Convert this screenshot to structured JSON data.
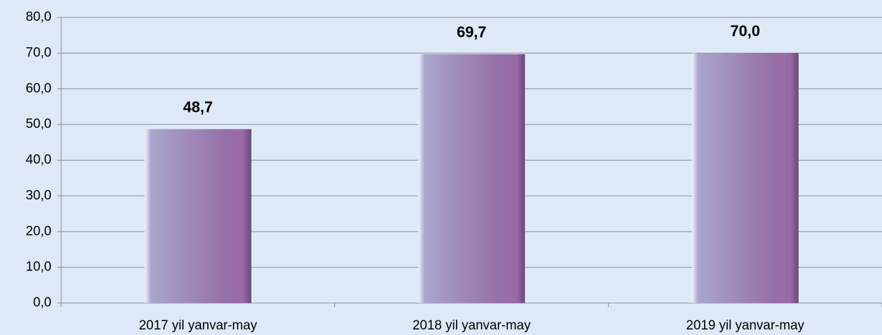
{
  "chart_data": {
    "type": "bar",
    "categories": [
      "2017 yil yanvar-may",
      "2018 yil yanvar-may",
      "2019 yil yanvar-may"
    ],
    "values": [
      48.7,
      69.7,
      70.0
    ],
    "value_labels": [
      "48,7",
      "69,7",
      "70,0"
    ],
    "color": "#9a78b0",
    "ylim": [
      0,
      80
    ],
    "yticks": [
      {
        "value": 0,
        "label": "0,0"
      },
      {
        "value": 10,
        "label": "10,0"
      },
      {
        "value": 20,
        "label": "20,0"
      },
      {
        "value": 30,
        "label": "30,0"
      },
      {
        "value": 40,
        "label": "40,0"
      },
      {
        "value": 50,
        "label": "50,0"
      },
      {
        "value": 60,
        "label": "60,0"
      },
      {
        "value": 70,
        "label": "70,0"
      },
      {
        "value": 80,
        "label": "80,0"
      }
    ],
    "grid": true
  }
}
